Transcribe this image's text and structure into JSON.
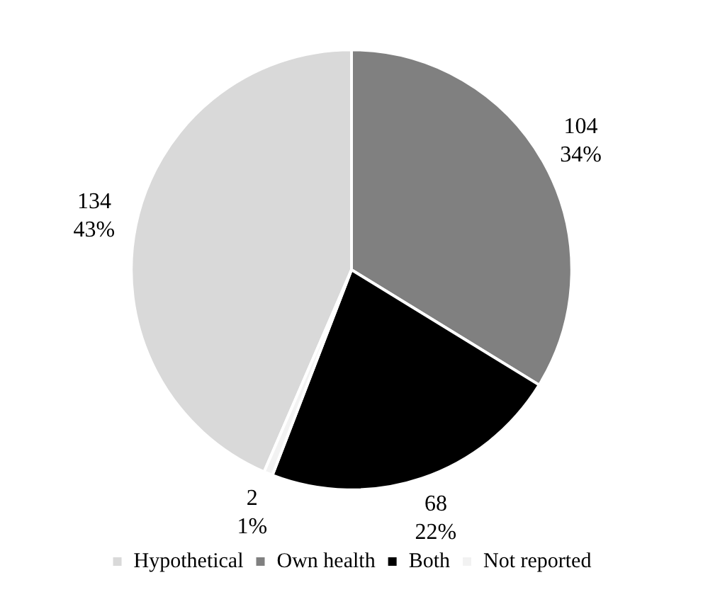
{
  "chart_data": {
    "type": "pie",
    "categories": [
      "Hypothetical",
      "Own health",
      "Both",
      "Not reported"
    ],
    "values": [
      134,
      104,
      68,
      2
    ],
    "colors": [
      "#d9d9d9",
      "#808080",
      "#000000",
      "#f2f2f2"
    ],
    "value_labels": [
      "134\n43%",
      "104\n34%",
      "68\n22%",
      "2\n1%"
    ],
    "legend": "bottom"
  }
}
